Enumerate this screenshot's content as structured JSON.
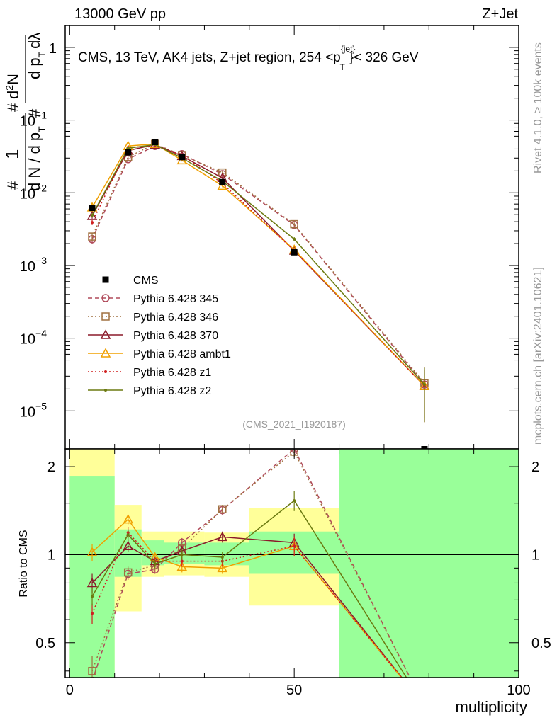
{
  "header": {
    "left": "13000 GeV pp",
    "right": "Z+Jet"
  },
  "side_labels": {
    "rivet": "Rivet 4.1.0, ≥ 100k events",
    "source": "mcplots.cern.ch [arXiv:2401.10621]"
  },
  "chart_data": [
    {
      "type": "line",
      "panel": "main",
      "title": "CMS, 13 TeV, AK4 jets, Z+jet region, 254 <p_T^{jet}> < 326 GeV",
      "title_parts": {
        "prefix": "CMS, 13 TeV, AK4 jets, Z+jet region, 254 <p",
        "sup": "{jet}",
        "sub": "T",
        "suffix": "}< 326 GeV"
      },
      "ylabel_parts": {
        "hash1": "#",
        "one": "1",
        "hash2": "#",
        "den": "d N / d p",
        "den_sub": "T",
        "hash3": "#",
        "num": "d",
        "num_sup": "2",
        "num_rest": "N",
        "den2": "d p",
        "den2_sub": "T",
        "den2_rest": "dλ"
      },
      "analysis_label": "(CMS_2021_I1920187)",
      "yscale": "log",
      "ylim": [
        3e-06,
        2.0
      ],
      "xlim": [
        -1,
        100
      ],
      "y_ticks": [
        {
          "value": 1e-05,
          "base": "10",
          "exp": "−5"
        },
        {
          "value": 0.0001,
          "base": "10",
          "exp": "−4"
        },
        {
          "value": 0.001,
          "base": "10",
          "exp": "−3"
        },
        {
          "value": 0.01,
          "base": "10",
          "exp": "−2"
        },
        {
          "value": 0.1,
          "base": "10",
          "exp": "−1"
        },
        {
          "value": 1,
          "base": "1",
          "exp": ""
        }
      ],
      "reference": {
        "name": "CMS",
        "x": [
          5,
          13,
          19,
          25,
          34,
          50,
          79
        ],
        "y": [
          0.0062,
          0.036,
          0.05,
          0.031,
          0.014,
          0.00152,
          0.0
        ],
        "err": [
          0.0004,
          0.0015,
          0.0018,
          0.0012,
          0.0006,
          0.0001,
          0.0
        ]
      },
      "series": [
        {
          "name": "Pythia 6.428 345",
          "color": "#b04a5a",
          "dash": "6,4",
          "marker": "circle",
          "x": [
            5,
            13,
            19,
            25,
            34,
            50,
            79
          ],
          "y": [
            0.0023,
            0.029,
            0.044,
            0.034,
            0.018,
            0.0036,
            2.3e-05
          ],
          "err": [
            0.0003,
            0.001,
            0.0015,
            0.0012,
            0.0008,
            0.0002,
            1.6e-05
          ]
        },
        {
          "name": "Pythia 6.428 346",
          "color": "#a07040",
          "dash": "2,3",
          "marker": "square",
          "x": [
            5,
            13,
            19,
            25,
            34,
            50,
            79
          ],
          "y": [
            0.0025,
            0.031,
            0.047,
            0.033,
            0.019,
            0.0037,
            2.4e-05
          ],
          "err": [
            0.0003,
            0.001,
            0.0015,
            0.0012,
            0.0008,
            0.0002,
            1.6e-05
          ]
        },
        {
          "name": "Pythia 6.428 370",
          "color": "#8b1a2a",
          "dash": "",
          "marker": "triangle",
          "x": [
            5,
            13,
            19,
            25,
            34,
            50,
            79
          ],
          "y": [
            0.0048,
            0.038,
            0.046,
            0.032,
            0.016,
            0.0016,
            2.2e-05
          ],
          "err": [
            0.0004,
            0.0012,
            0.0015,
            0.0012,
            0.0007,
            0.0001,
            1.5e-05
          ]
        },
        {
          "name": "Pythia 6.428 ambt1",
          "color": "#f0a000",
          "dash": "",
          "marker": "triangle",
          "x": [
            5,
            13,
            19,
            25,
            34,
            50,
            79
          ],
          "y": [
            0.0063,
            0.044,
            0.047,
            0.028,
            0.0125,
            0.00165,
            2.2e-05
          ],
          "err": [
            0.0004,
            0.0012,
            0.0015,
            0.0011,
            0.0006,
            0.0001,
            1.5e-05
          ]
        },
        {
          "name": "Pythia 6.428 z1",
          "color": "#d02020",
          "dash": "2,3",
          "marker": "dot",
          "x": [
            5,
            13,
            19,
            25,
            34,
            50,
            79
          ],
          "y": [
            0.0039,
            0.042,
            0.044,
            0.033,
            0.0135,
            0.0016,
            2.2e-05
          ],
          "err": [
            0.0003,
            0.0012,
            0.0015,
            0.0012,
            0.0006,
            0.0001,
            1.5e-05
          ]
        },
        {
          "name": "Pythia 6.428 z2",
          "color": "#6b7a10",
          "dash": "",
          "marker": "dot",
          "x": [
            5,
            13,
            19,
            25,
            34,
            50,
            79
          ],
          "y": [
            0.0049,
            0.041,
            0.046,
            0.03,
            0.0145,
            0.0023,
            2.3e-05
          ],
          "err": [
            0.0003,
            0.0012,
            0.0015,
            0.0011,
            0.0006,
            0.00015,
            1.6e-05
          ]
        }
      ]
    },
    {
      "type": "line",
      "panel": "ratio",
      "ylabel": "Ratio to CMS",
      "xlabel": "multiplicity",
      "yscale": "log",
      "ylim": [
        0.38,
        2.3
      ],
      "xlim": [
        -1,
        100
      ],
      "y_ticks": [
        0.5,
        1,
        2
      ],
      "x_ticks": [
        0,
        50,
        100
      ],
      "bands": [
        {
          "x0": 0,
          "x1": 10,
          "yellow": [
            0.3,
            2.3
          ],
          "green": [
            0.3,
            1.85
          ]
        },
        {
          "x0": 10,
          "x1": 16,
          "yellow": [
            0.64,
            1.48
          ],
          "green": [
            0.84,
            1.22
          ]
        },
        {
          "x0": 16,
          "x1": 21,
          "yellow": [
            0.84,
            1.2
          ],
          "green": [
            0.92,
            1.12
          ]
        },
        {
          "x0": 21,
          "x1": 30,
          "yellow": [
            0.85,
            1.2
          ],
          "green": [
            0.93,
            1.1
          ]
        },
        {
          "x0": 30,
          "x1": 40,
          "yellow": [
            0.84,
            1.19
          ],
          "green": [
            0.92,
            1.1
          ]
        },
        {
          "x0": 40,
          "x1": 60,
          "yellow": [
            0.67,
            1.44
          ],
          "green": [
            0.86,
            1.2
          ]
        },
        {
          "x0": 60,
          "x1": 100,
          "yellow": [
            0.3,
            2.3
          ],
          "green": [
            0.3,
            2.3
          ]
        }
      ],
      "series": [
        {
          "name": "Pythia 6.428 345",
          "color": "#b04a5a",
          "dash": "6,4",
          "marker": "circle",
          "x": [
            5,
            13,
            19,
            25,
            34,
            50,
            79
          ],
          "y": [
            0.37,
            0.86,
            0.89,
            1.1,
            1.42,
            2.3,
            0.3
          ],
          "err": [
            0.05,
            0.04,
            0.03,
            0.04,
            0.05,
            0.1,
            0
          ]
        },
        {
          "name": "Pythia 6.428 346",
          "color": "#a07040",
          "dash": "2,3",
          "marker": "square",
          "x": [
            5,
            13,
            19,
            25,
            34,
            50,
            79
          ],
          "y": [
            0.4,
            0.87,
            0.92,
            1.05,
            1.43,
            2.25,
            0.3
          ],
          "err": [
            0.05,
            0.04,
            0.03,
            0.04,
            0.05,
            0.1,
            0
          ]
        },
        {
          "name": "Pythia 6.428 370",
          "color": "#8b1a2a",
          "dash": "",
          "marker": "triangle",
          "x": [
            5,
            13,
            19,
            25,
            34,
            50,
            79
          ],
          "y": [
            0.8,
            1.07,
            0.95,
            1.03,
            1.15,
            1.1,
            0.3
          ],
          "err": [
            0.06,
            0.05,
            0.03,
            0.04,
            0.05,
            0.08,
            0
          ]
        },
        {
          "name": "Pythia 6.428 ambt1",
          "color": "#f0a000",
          "dash": "",
          "marker": "triangle",
          "x": [
            5,
            13,
            19,
            25,
            34,
            50,
            79
          ],
          "y": [
            1.02,
            1.32,
            0.98,
            0.91,
            0.9,
            1.07,
            0.3
          ],
          "err": [
            0.07,
            0.05,
            0.03,
            0.04,
            0.04,
            0.08,
            0
          ]
        },
        {
          "name": "Pythia 6.428 z1",
          "color": "#d02020",
          "dash": "2,3",
          "marker": "dot",
          "x": [
            5,
            13,
            19,
            25,
            34,
            50,
            79
          ],
          "y": [
            0.63,
            1.19,
            0.95,
            0.95,
            0.95,
            1.07,
            0.3
          ],
          "err": [
            0.05,
            0.05,
            0.03,
            0.04,
            0.04,
            0.08,
            0
          ]
        },
        {
          "name": "Pythia 6.428 z2",
          "color": "#6b7a10",
          "dash": "",
          "marker": "dot",
          "x": [
            5,
            13,
            19,
            25,
            34,
            50,
            79
          ],
          "y": [
            0.72,
            1.17,
            0.93,
            1.0,
            0.98,
            1.53,
            0.3
          ],
          "err": [
            0.05,
            0.05,
            0.03,
            0.04,
            0.04,
            0.12,
            0
          ]
        }
      ]
    }
  ]
}
